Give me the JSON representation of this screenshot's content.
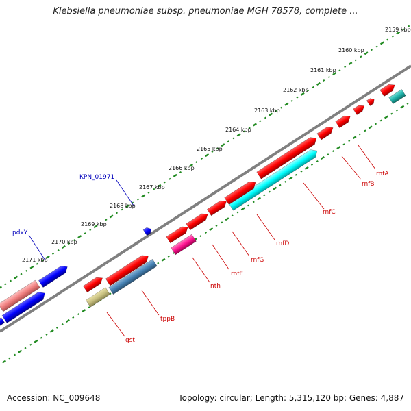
{
  "title": "Klebsiella pneumoniae subsp. pneumoniae MGH 78578, complete ...",
  "footer": {
    "accession": "Accession: NC_009648",
    "summary": "Topology: circular; Length: 5,315,120 bp; Genes: 4,887"
  },
  "ticks": [
    "2159 kbp",
    "2160 kbp",
    "2161 kbp",
    "2162 kbp",
    "2163 kbp",
    "2164 kbp",
    "2165 kbp",
    "2166 kbp",
    "2167 kbp",
    "2168 kbp",
    "2169 kbp",
    "2170 kbp",
    "2171 kbp"
  ],
  "gene_labels": [
    "rnfA",
    "rnfB",
    "rnfC",
    "rnfD",
    "rnfG",
    "rnfE",
    "nth",
    "tppB",
    "gst",
    "KPN_01971",
    "pdxY"
  ],
  "colors": {
    "red": "#ff0000",
    "cyan": "#00ffff",
    "blue": "#0000ff",
    "magenta": "#ff1493",
    "pink": "#f08080",
    "steelblue": "#4682b4",
    "olive": "#c8c080",
    "teal": "#20b2aa",
    "backbone": "#808080",
    "ruler": "#228b22",
    "label_red": "#cc0000",
    "label_blue": "#0000bb"
  }
}
